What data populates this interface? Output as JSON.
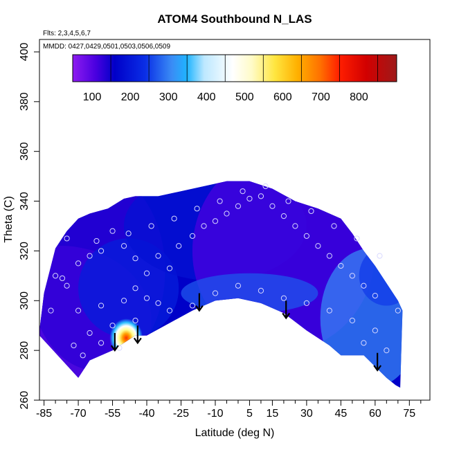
{
  "chart_data": {
    "type": "heatmap",
    "title": "ATOM4 Southbound N_LAS",
    "notes": [
      "Flts: 2,3,4,5,6,7",
      "MMDD: 0427,0429,0501,0503,0506,0509"
    ],
    "xlabel": "Latitude (deg N)",
    "ylabel": "Theta (C)",
    "xlim": [
      -87,
      84
    ],
    "ylim": [
      260,
      405
    ],
    "xticks": [
      -85,
      -70,
      -55,
      -40,
      -25,
      -10,
      5,
      15,
      30,
      45,
      60,
      75
    ],
    "yticks": [
      260,
      280,
      300,
      320,
      340,
      360,
      380,
      400
    ],
    "colorbar": {
      "range": [
        0,
        850
      ],
      "ticks": [
        100,
        200,
        300,
        400,
        500,
        600,
        700,
        800
      ],
      "colors": [
        [
          0,
          "#8e1cf0"
        ],
        [
          60,
          "#4a00e0"
        ],
        [
          110,
          "#0000c8"
        ],
        [
          190,
          "#0a2ee6"
        ],
        [
          260,
          "#3a8cf5"
        ],
        [
          300,
          "#1fb4ff"
        ],
        [
          345,
          "#bde8ff"
        ],
        [
          420,
          "#ffffff"
        ],
        [
          470,
          "#fffbc8"
        ],
        [
          530,
          "#ffe640"
        ],
        [
          590,
          "#ffb000"
        ],
        [
          650,
          "#ff7000"
        ],
        [
          700,
          "#ff1e00"
        ],
        [
          770,
          "#d20000"
        ],
        [
          850,
          "#9e1a1a"
        ]
      ]
    },
    "boundary": {
      "top": [
        [
          -87,
          288
        ],
        [
          -85,
          303
        ],
        [
          -80,
          321
        ],
        [
          -75,
          328
        ],
        [
          -70,
          333
        ],
        [
          -65,
          335
        ],
        [
          -57,
          337
        ],
        [
          -50,
          341
        ],
        [
          -45,
          342
        ],
        [
          -35,
          342
        ],
        [
          -25,
          344
        ],
        [
          -15,
          346
        ],
        [
          -5,
          348
        ],
        [
          5,
          348
        ],
        [
          15,
          345
        ],
        [
          25,
          340
        ],
        [
          35,
          337
        ],
        [
          45,
          333
        ],
        [
          50,
          327
        ],
        [
          55,
          320
        ],
        [
          60,
          314
        ],
        [
          65,
          307
        ],
        [
          70,
          300
        ],
        [
          72,
          296
        ]
      ],
      "bottom": [
        [
          -87,
          286
        ],
        [
          -80,
          279
        ],
        [
          -75,
          274
        ],
        [
          -70,
          269
        ],
        [
          -65,
          276
        ],
        [
          -55,
          280
        ],
        [
          -50,
          283
        ],
        [
          -45,
          286
        ],
        [
          -40,
          286
        ],
        [
          -30,
          291
        ],
        [
          -20,
          296
        ],
        [
          -10,
          300
        ],
        [
          0,
          301
        ],
        [
          10,
          299
        ],
        [
          20,
          295
        ],
        [
          30,
          288
        ],
        [
          40,
          282
        ],
        [
          45,
          278
        ],
        [
          55,
          278
        ],
        [
          65,
          269
        ],
        [
          69,
          266
        ],
        [
          71,
          265
        ]
      ]
    },
    "hotspot": {
      "lat": -49,
      "theta": 285,
      "value": 700
    },
    "background_value": 110,
    "points": [
      [
        -80,
        310
      ],
      [
        -77,
        309
      ],
      [
        -75,
        306
      ],
      [
        -70,
        315
      ],
      [
        -65,
        318
      ],
      [
        -60,
        320
      ],
      [
        -55,
        328
      ],
      [
        -50,
        322
      ],
      [
        -45,
        317
      ],
      [
        -40,
        311
      ],
      [
        -35,
        318
      ],
      [
        -30,
        313
      ],
      [
        -26,
        322
      ],
      [
        -20,
        326
      ],
      [
        -15,
        330
      ],
      [
        -10,
        332
      ],
      [
        -5,
        335
      ],
      [
        0,
        338
      ],
      [
        5,
        341
      ],
      [
        10,
        342
      ],
      [
        15,
        338
      ],
      [
        20,
        334
      ],
      [
        25,
        330
      ],
      [
        30,
        326
      ],
      [
        35,
        322
      ],
      [
        40,
        318
      ],
      [
        45,
        314
      ],
      [
        50,
        310
      ],
      [
        55,
        306
      ],
      [
        60,
        302
      ],
      [
        -82,
        296
      ],
      [
        -70,
        296
      ],
      [
        -60,
        298
      ],
      [
        -50,
        300
      ],
      [
        -45,
        305
      ],
      [
        -40,
        301
      ],
      [
        -35,
        299
      ],
      [
        -30,
        296
      ],
      [
        -20,
        298
      ],
      [
        -10,
        303
      ],
      [
        0,
        306
      ],
      [
        10,
        304
      ],
      [
        20,
        301
      ],
      [
        30,
        299
      ],
      [
        40,
        296
      ],
      [
        50,
        292
      ],
      [
        60,
        288
      ],
      [
        -65,
        287
      ],
      [
        -55,
        290
      ],
      [
        -45,
        292
      ],
      [
        -72,
        282
      ],
      [
        -68,
        278
      ],
      [
        -60,
        283
      ],
      [
        -52,
        281
      ],
      [
        55,
        283
      ],
      [
        65,
        280
      ],
      [
        -75,
        325
      ],
      [
        -62,
        324
      ],
      [
        -48,
        327
      ],
      [
        -38,
        330
      ],
      [
        -28,
        333
      ],
      [
        -18,
        337
      ],
      [
        -8,
        340
      ],
      [
        2,
        344
      ],
      [
        12,
        346
      ],
      [
        22,
        340
      ],
      [
        32,
        336
      ],
      [
        42,
        330
      ],
      [
        52,
        325
      ],
      [
        62,
        318
      ],
      [
        70,
        296
      ]
    ],
    "arrows": [
      {
        "lat": -54,
        "theta_top": 287,
        "theta_bottom": 280
      },
      {
        "lat": -44,
        "theta_top": 290,
        "theta_bottom": 283
      },
      {
        "lat": -17,
        "theta_top": 303,
        "theta_bottom": 296
      },
      {
        "lat": 21,
        "theta_top": 300,
        "theta_bottom": 293
      },
      {
        "lat": 61,
        "theta_top": 279,
        "theta_bottom": 272
      }
    ]
  }
}
